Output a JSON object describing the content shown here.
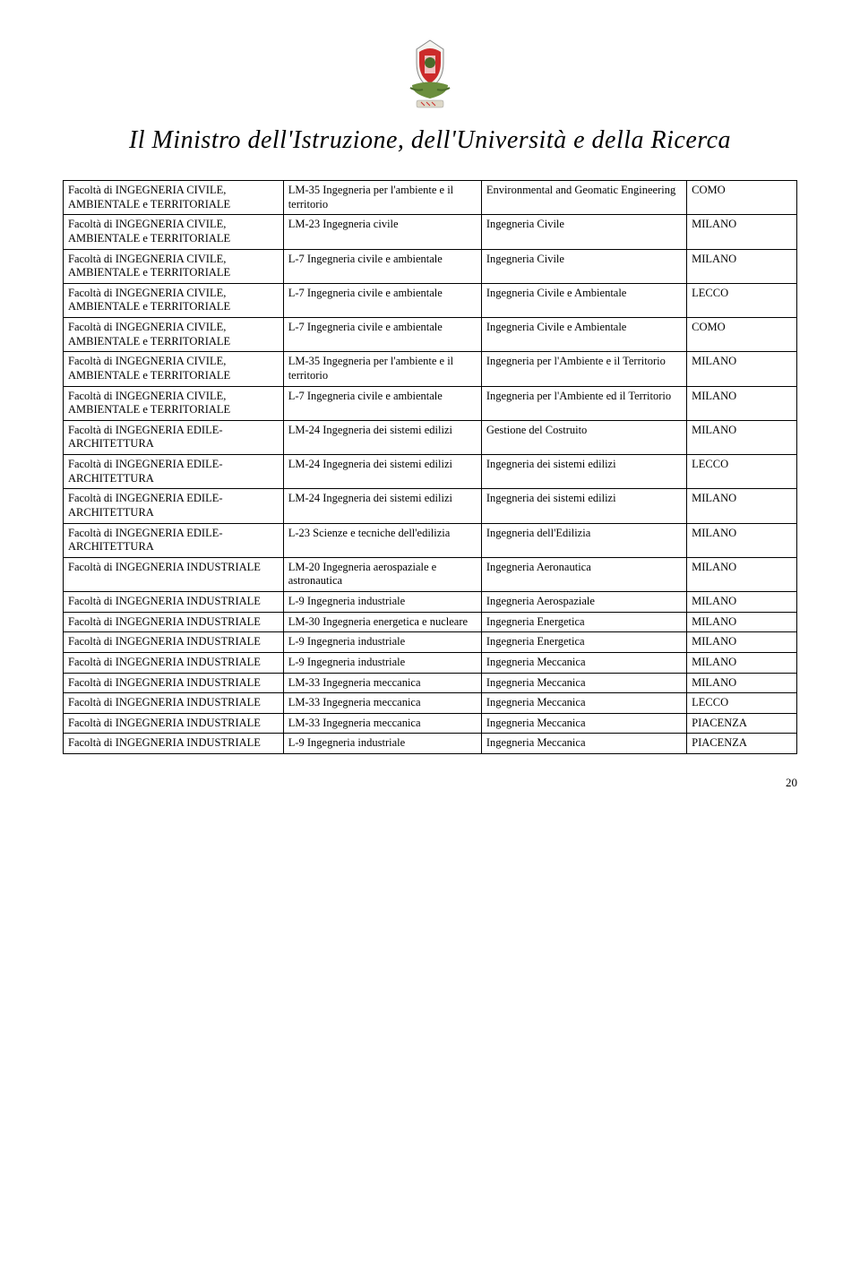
{
  "header": {
    "title": "Il Ministro dell'Istruzione, dell'Università e della Ricerca"
  },
  "table": {
    "rows": [
      [
        "Facoltà di INGEGNERIA CIVILE, AMBIENTALE e TERRITORIALE",
        "LM-35 Ingegneria per l'ambiente e il territorio",
        "Environmental and Geomatic Engineering",
        "COMO"
      ],
      [
        "Facoltà di INGEGNERIA CIVILE, AMBIENTALE e TERRITORIALE",
        "LM-23 Ingegneria civile",
        "Ingegneria Civile",
        "MILANO"
      ],
      [
        "Facoltà di INGEGNERIA CIVILE, AMBIENTALE e TERRITORIALE",
        "L-7 Ingegneria civile e ambientale",
        "Ingegneria Civile",
        "MILANO"
      ],
      [
        "Facoltà di INGEGNERIA CIVILE, AMBIENTALE e TERRITORIALE",
        "L-7 Ingegneria civile e ambientale",
        "Ingegneria Civile e Ambientale",
        "LECCO"
      ],
      [
        "Facoltà di INGEGNERIA CIVILE, AMBIENTALE e TERRITORIALE",
        "L-7 Ingegneria civile e ambientale",
        "Ingegneria Civile e Ambientale",
        "COMO"
      ],
      [
        "Facoltà di INGEGNERIA CIVILE, AMBIENTALE e TERRITORIALE",
        "LM-35 Ingegneria per l'ambiente e il territorio",
        "Ingegneria per l'Ambiente e il Territorio",
        "MILANO"
      ],
      [
        "Facoltà di INGEGNERIA CIVILE, AMBIENTALE e TERRITORIALE",
        "L-7 Ingegneria civile e ambientale",
        "Ingegneria per l'Ambiente ed il Territorio",
        "MILANO"
      ],
      [
        "Facoltà di INGEGNERIA EDILE-ARCHITETTURA",
        "LM-24 Ingegneria dei sistemi edilizi",
        "Gestione del Costruito",
        "MILANO"
      ],
      [
        "Facoltà di INGEGNERIA EDILE-ARCHITETTURA",
        "LM-24 Ingegneria dei sistemi edilizi",
        "Ingegneria dei sistemi edilizi",
        "LECCO"
      ],
      [
        "Facoltà di INGEGNERIA EDILE-ARCHITETTURA",
        "LM-24 Ingegneria dei sistemi edilizi",
        "Ingegneria dei sistemi edilizi",
        "MILANO"
      ],
      [
        "Facoltà di INGEGNERIA EDILE-ARCHITETTURA",
        "L-23 Scienze e tecniche dell'edilizia",
        "Ingegneria dell'Edilizia",
        "MILANO"
      ],
      [
        "Facoltà di INGEGNERIA INDUSTRIALE",
        "LM-20 Ingegneria aerospaziale e astronautica",
        "Ingegneria Aeronautica",
        "MILANO"
      ],
      [
        "Facoltà di INGEGNERIA INDUSTRIALE",
        "L-9 Ingegneria industriale",
        "Ingegneria Aerospaziale",
        "MILANO"
      ],
      [
        "Facoltà di INGEGNERIA INDUSTRIALE",
        "LM-30 Ingegneria energetica e nucleare",
        "Ingegneria Energetica",
        "MILANO"
      ],
      [
        "Facoltà di INGEGNERIA INDUSTRIALE",
        "L-9 Ingegneria industriale",
        "Ingegneria Energetica",
        "MILANO"
      ],
      [
        "Facoltà di INGEGNERIA INDUSTRIALE",
        "L-9 Ingegneria industriale",
        "Ingegneria Meccanica",
        "MILANO"
      ],
      [
        "Facoltà di INGEGNERIA INDUSTRIALE",
        "LM-33 Ingegneria meccanica",
        "Ingegneria Meccanica",
        "MILANO"
      ],
      [
        "Facoltà di INGEGNERIA INDUSTRIALE",
        "LM-33 Ingegneria meccanica",
        "Ingegneria Meccanica",
        "LECCO"
      ],
      [
        "Facoltà di INGEGNERIA INDUSTRIALE",
        "LM-33 Ingegneria meccanica",
        "Ingegneria Meccanica",
        "PIACENZA"
      ],
      [
        "Facoltà di INGEGNERIA INDUSTRIALE",
        "L-9 Ingegneria industriale",
        "Ingegneria Meccanica",
        "PIACENZA"
      ]
    ]
  },
  "page_number": "20"
}
